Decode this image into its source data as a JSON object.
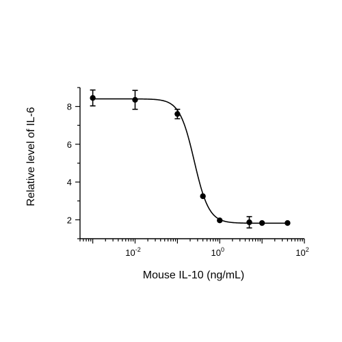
{
  "chart_data": {
    "type": "scatter",
    "xlabel": "Mouse IL-10 (ng/mL)",
    "ylabel": "Relative level of IL-6",
    "x_scale": "log10",
    "xlim": [
      0.0005,
      100
    ],
    "ylim": [
      1,
      9
    ],
    "x_ticks": [
      {
        "base": "10",
        "exp": "-2",
        "value": 0.01
      },
      {
        "base": "10",
        "exp": "0",
        "value": 1
      },
      {
        "base": "10",
        "exp": "2",
        "value": 100
      }
    ],
    "y_ticks": [
      {
        "label": "2",
        "value": 2
      },
      {
        "label": "4",
        "value": 4
      },
      {
        "label": "6",
        "value": 6
      },
      {
        "label": "8",
        "value": 8
      }
    ],
    "grid": false,
    "legend": "none",
    "series": [
      {
        "points": [
          {
            "x": 0.001,
            "y": 8.45,
            "err": 0.42
          },
          {
            "x": 0.01,
            "y": 8.35,
            "err": 0.5
          },
          {
            "x": 0.1,
            "y": 7.6,
            "err": 0.25
          },
          {
            "x": 0.4,
            "y": 3.25,
            "err": 0
          },
          {
            "x": 1.0,
            "y": 1.97,
            "err": 0
          },
          {
            "x": 5.0,
            "y": 1.87,
            "err": 0.3
          },
          {
            "x": 10.0,
            "y": 1.83,
            "err": 0
          },
          {
            "x": 40.0,
            "y": 1.83,
            "err": 0
          }
        ],
        "fit": {
          "top": 8.4,
          "bottom": 1.82,
          "ic50": 0.25,
          "hill": 2.5
        }
      }
    ]
  }
}
